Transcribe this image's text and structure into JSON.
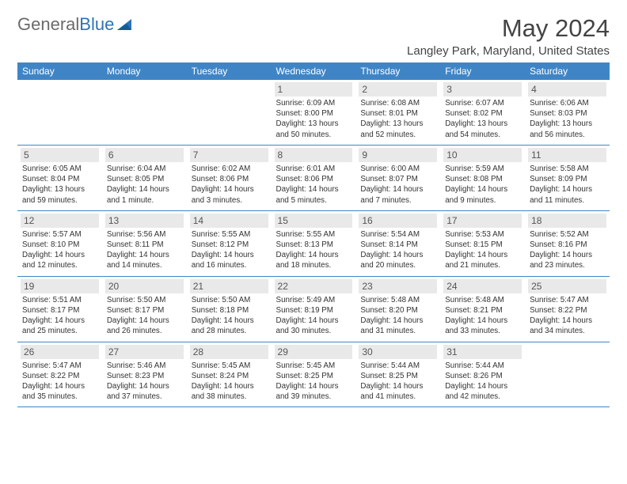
{
  "brand": {
    "part1": "General",
    "part2": "Blue"
  },
  "title": "May 2024",
  "location": "Langley Park, Maryland, United States",
  "style": {
    "header_bg": "#3f85c6",
    "header_fg": "#ffffff",
    "daynum_bg": "#e9e9e9",
    "border_color": "#3f85c6",
    "body_fontsize": 9.8,
    "title_fontsize": 31
  },
  "weekdays": [
    "Sunday",
    "Monday",
    "Tuesday",
    "Wednesday",
    "Thursday",
    "Friday",
    "Saturday"
  ],
  "weeks": [
    [
      null,
      null,
      null,
      {
        "n": "1",
        "sr": "6:09 AM",
        "ss": "8:00 PM",
        "dl": "13 hours and 50 minutes."
      },
      {
        "n": "2",
        "sr": "6:08 AM",
        "ss": "8:01 PM",
        "dl": "13 hours and 52 minutes."
      },
      {
        "n": "3",
        "sr": "6:07 AM",
        "ss": "8:02 PM",
        "dl": "13 hours and 54 minutes."
      },
      {
        "n": "4",
        "sr": "6:06 AM",
        "ss": "8:03 PM",
        "dl": "13 hours and 56 minutes."
      }
    ],
    [
      {
        "n": "5",
        "sr": "6:05 AM",
        "ss": "8:04 PM",
        "dl": "13 hours and 59 minutes."
      },
      {
        "n": "6",
        "sr": "6:04 AM",
        "ss": "8:05 PM",
        "dl": "14 hours and 1 minute."
      },
      {
        "n": "7",
        "sr": "6:02 AM",
        "ss": "8:06 PM",
        "dl": "14 hours and 3 minutes."
      },
      {
        "n": "8",
        "sr": "6:01 AM",
        "ss": "8:06 PM",
        "dl": "14 hours and 5 minutes."
      },
      {
        "n": "9",
        "sr": "6:00 AM",
        "ss": "8:07 PM",
        "dl": "14 hours and 7 minutes."
      },
      {
        "n": "10",
        "sr": "5:59 AM",
        "ss": "8:08 PM",
        "dl": "14 hours and 9 minutes."
      },
      {
        "n": "11",
        "sr": "5:58 AM",
        "ss": "8:09 PM",
        "dl": "14 hours and 11 minutes."
      }
    ],
    [
      {
        "n": "12",
        "sr": "5:57 AM",
        "ss": "8:10 PM",
        "dl": "14 hours and 12 minutes."
      },
      {
        "n": "13",
        "sr": "5:56 AM",
        "ss": "8:11 PM",
        "dl": "14 hours and 14 minutes."
      },
      {
        "n": "14",
        "sr": "5:55 AM",
        "ss": "8:12 PM",
        "dl": "14 hours and 16 minutes."
      },
      {
        "n": "15",
        "sr": "5:55 AM",
        "ss": "8:13 PM",
        "dl": "14 hours and 18 minutes."
      },
      {
        "n": "16",
        "sr": "5:54 AM",
        "ss": "8:14 PM",
        "dl": "14 hours and 20 minutes."
      },
      {
        "n": "17",
        "sr": "5:53 AM",
        "ss": "8:15 PM",
        "dl": "14 hours and 21 minutes."
      },
      {
        "n": "18",
        "sr": "5:52 AM",
        "ss": "8:16 PM",
        "dl": "14 hours and 23 minutes."
      }
    ],
    [
      {
        "n": "19",
        "sr": "5:51 AM",
        "ss": "8:17 PM",
        "dl": "14 hours and 25 minutes."
      },
      {
        "n": "20",
        "sr": "5:50 AM",
        "ss": "8:17 PM",
        "dl": "14 hours and 26 minutes."
      },
      {
        "n": "21",
        "sr": "5:50 AM",
        "ss": "8:18 PM",
        "dl": "14 hours and 28 minutes."
      },
      {
        "n": "22",
        "sr": "5:49 AM",
        "ss": "8:19 PM",
        "dl": "14 hours and 30 minutes."
      },
      {
        "n": "23",
        "sr": "5:48 AM",
        "ss": "8:20 PM",
        "dl": "14 hours and 31 minutes."
      },
      {
        "n": "24",
        "sr": "5:48 AM",
        "ss": "8:21 PM",
        "dl": "14 hours and 33 minutes."
      },
      {
        "n": "25",
        "sr": "5:47 AM",
        "ss": "8:22 PM",
        "dl": "14 hours and 34 minutes."
      }
    ],
    [
      {
        "n": "26",
        "sr": "5:47 AM",
        "ss": "8:22 PM",
        "dl": "14 hours and 35 minutes."
      },
      {
        "n": "27",
        "sr": "5:46 AM",
        "ss": "8:23 PM",
        "dl": "14 hours and 37 minutes."
      },
      {
        "n": "28",
        "sr": "5:45 AM",
        "ss": "8:24 PM",
        "dl": "14 hours and 38 minutes."
      },
      {
        "n": "29",
        "sr": "5:45 AM",
        "ss": "8:25 PM",
        "dl": "14 hours and 39 minutes."
      },
      {
        "n": "30",
        "sr": "5:44 AM",
        "ss": "8:25 PM",
        "dl": "14 hours and 41 minutes."
      },
      {
        "n": "31",
        "sr": "5:44 AM",
        "ss": "8:26 PM",
        "dl": "14 hours and 42 minutes."
      },
      null
    ]
  ],
  "labels": {
    "sunrise": "Sunrise:",
    "sunset": "Sunset:",
    "daylight": "Daylight:"
  }
}
